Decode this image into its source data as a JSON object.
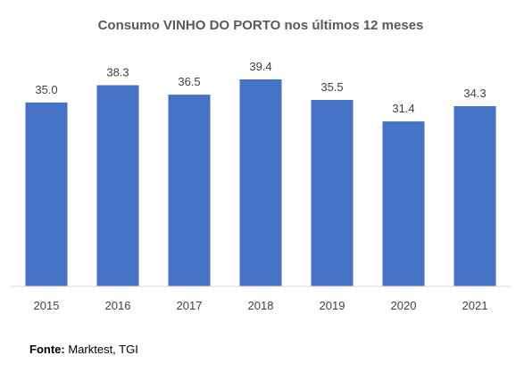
{
  "chart_data": {
    "type": "bar",
    "title": "Consumo VINHO DO PORTO nos últimos 12 meses",
    "categories": [
      "2015",
      "2016",
      "2017",
      "2018",
      "2019",
      "2020",
      "2021"
    ],
    "values": [
      35.0,
      38.3,
      36.5,
      39.4,
      35.5,
      31.4,
      34.3
    ],
    "data_labels": [
      "35.0",
      "38.3",
      "36.5",
      "39.4",
      "35.5",
      "31.4",
      "34.3"
    ],
    "xlabel": "",
    "ylabel": "",
    "ylim": [
      0,
      45
    ],
    "grid": false,
    "legend": "none",
    "bar_color": "#4472C4",
    "axis_color": "#D9D9D9"
  },
  "source": {
    "label": "Fonte:",
    "text": "Marktest, TGI"
  }
}
